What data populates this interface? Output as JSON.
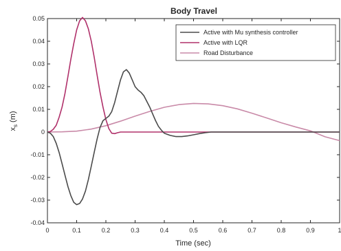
{
  "chart_data": {
    "type": "line",
    "title": "Body Travel",
    "xlabel": "Time (sec)",
    "ylabel": "x_s (m)",
    "ylabel_main": "x",
    "ylabel_sub": "s",
    "ylabel_unit": " (m)",
    "xlim": [
      0,
      1
    ],
    "ylim": [
      -0.04,
      0.05
    ],
    "xticks": [
      0,
      0.1,
      0.2,
      0.3,
      0.4,
      0.5,
      0.6,
      0.7,
      0.8,
      0.9,
      1
    ],
    "xtick_labels": [
      "0",
      "0.1",
      "0.2",
      "0.3",
      "0.4",
      "0.5",
      "0.6",
      "0.7",
      "0.8",
      "0.9",
      "1"
    ],
    "yticks": [
      -0.04,
      -0.03,
      -0.02,
      -0.01,
      0,
      0.01,
      0.02,
      0.03,
      0.04,
      0.05
    ],
    "ytick_labels": [
      "-0.04",
      "-0.03",
      "-0.02",
      "-0.01",
      "0",
      "0.01",
      "0.02",
      "0.03",
      "0.04",
      "0.05"
    ],
    "grid": false,
    "legend_position": "top-right",
    "series": [
      {
        "name": "Active with Mu synthesis controller",
        "color": "#4a4a4a",
        "x": [
          0,
          0.01,
          0.02,
          0.03,
          0.04,
          0.05,
          0.06,
          0.07,
          0.08,
          0.09,
          0.1,
          0.11,
          0.12,
          0.13,
          0.14,
          0.15,
          0.16,
          0.17,
          0.18,
          0.19,
          0.2,
          0.21,
          0.22,
          0.23,
          0.24,
          0.25,
          0.26,
          0.27,
          0.28,
          0.29,
          0.3,
          0.31,
          0.32,
          0.33,
          0.34,
          0.35,
          0.36,
          0.37,
          0.38,
          0.39,
          0.4,
          0.42,
          0.44,
          0.46,
          0.48,
          0.5,
          0.52,
          0.54,
          0.56,
          0.58,
          0.6,
          0.65,
          0.7,
          0.8,
          0.9,
          1
        ],
        "values": [
          0,
          -0.0005,
          -0.002,
          -0.005,
          -0.009,
          -0.014,
          -0.019,
          -0.024,
          -0.028,
          -0.031,
          -0.032,
          -0.0315,
          -0.0295,
          -0.026,
          -0.021,
          -0.015,
          -0.009,
          -0.003,
          0.002,
          0.005,
          0.006,
          0.007,
          0.009,
          0.013,
          0.018,
          0.023,
          0.0265,
          0.0275,
          0.026,
          0.023,
          0.02,
          0.0185,
          0.0175,
          0.016,
          0.0135,
          0.011,
          0.008,
          0.005,
          0.0025,
          0.0008,
          -0.0005,
          -0.0015,
          -0.002,
          -0.002,
          -0.0017,
          -0.0012,
          -0.0007,
          -0.0003,
          0,
          0,
          0,
          0,
          0,
          0,
          0,
          0
        ]
      },
      {
        "name": "Active with LQR",
        "color": "#b0306a",
        "x": [
          0,
          0.01,
          0.02,
          0.03,
          0.04,
          0.05,
          0.06,
          0.07,
          0.08,
          0.09,
          0.1,
          0.11,
          0.12,
          0.13,
          0.14,
          0.15,
          0.16,
          0.17,
          0.18,
          0.19,
          0.2,
          0.21,
          0.22,
          0.23,
          0.24,
          0.25,
          0.3,
          0.4,
          0.5,
          0.6,
          0.7,
          0.8,
          0.9,
          1
        ],
        "values": [
          0,
          0.0002,
          0.0012,
          0.003,
          0.0065,
          0.011,
          0.017,
          0.0245,
          0.032,
          0.039,
          0.045,
          0.049,
          0.0505,
          0.049,
          0.0455,
          0.04,
          0.033,
          0.025,
          0.0175,
          0.011,
          0.0055,
          0.0015,
          -0.0005,
          -0.0007,
          -0.0003,
          0,
          0,
          0,
          0,
          0,
          0,
          0,
          0,
          0
        ]
      },
      {
        "name": "Road Disturbance",
        "color": "#c98aa8",
        "x": [
          0,
          0.05,
          0.1,
          0.15,
          0.2,
          0.25,
          0.3,
          0.35,
          0.4,
          0.45,
          0.5,
          0.55,
          0.6,
          0.65,
          0.7,
          0.75,
          0.8,
          0.85,
          0.9,
          0.95,
          1
        ],
        "values": [
          0,
          0.0001,
          0.0004,
          0.0013,
          0.0028,
          0.0048,
          0.007,
          0.0091,
          0.0109,
          0.0121,
          0.0126,
          0.0124,
          0.0116,
          0.0102,
          0.0083,
          0.0062,
          0.0041,
          0.0022,
          0.0005,
          -0.0021,
          -0.0038
        ]
      }
    ]
  }
}
